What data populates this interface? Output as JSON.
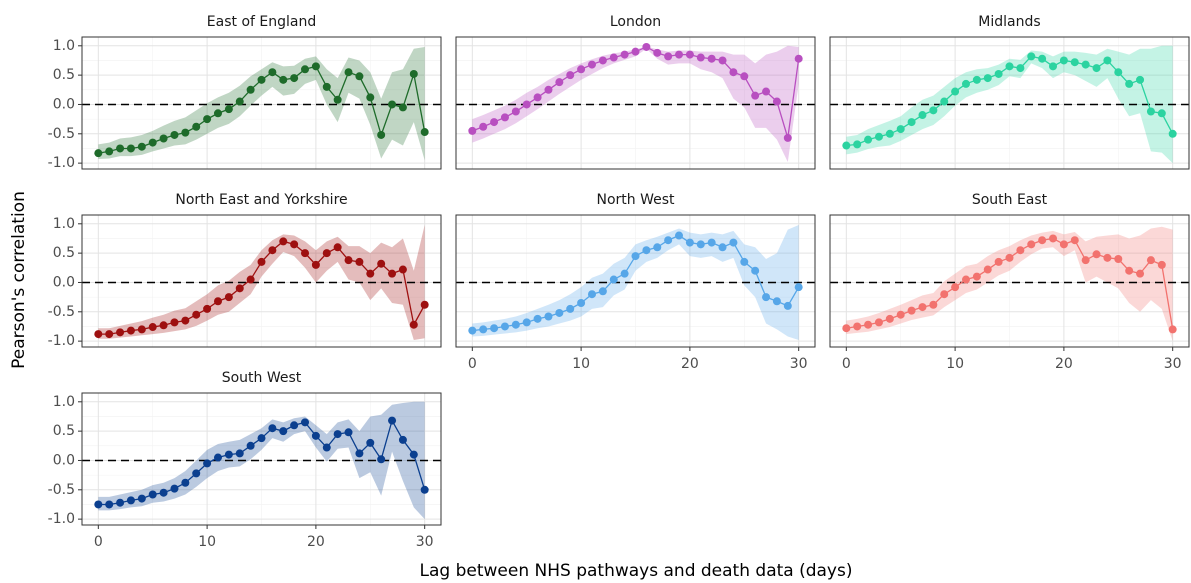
{
  "axis_labels": {
    "x": "Lag between NHS pathways and death data (days)",
    "y": "Pearson's correlation"
  },
  "chart_data": [
    {
      "type": "line",
      "title": "East of England",
      "color": "#1e6b2a",
      "x": [
        0,
        1,
        2,
        3,
        4,
        5,
        6,
        7,
        8,
        9,
        10,
        11,
        12,
        13,
        14,
        15,
        16,
        17,
        18,
        19,
        20,
        21,
        22,
        23,
        24,
        25,
        26,
        27,
        28,
        29,
        30
      ],
      "values": [
        -0.83,
        -0.8,
        -0.75,
        -0.75,
        -0.72,
        -0.65,
        -0.58,
        -0.52,
        -0.48,
        -0.38,
        -0.25,
        -0.15,
        -0.08,
        0.05,
        0.25,
        0.42,
        0.55,
        0.42,
        0.45,
        0.6,
        0.65,
        0.3,
        0.08,
        0.55,
        0.48,
        0.12,
        -0.52,
        0.0,
        -0.05,
        0.52,
        -0.47
      ],
      "upper": [
        -0.68,
        -0.65,
        -0.58,
        -0.56,
        -0.52,
        -0.45,
        -0.36,
        -0.28,
        -0.22,
        -0.1,
        0.02,
        0.12,
        0.2,
        0.32,
        0.48,
        0.6,
        0.72,
        0.65,
        0.66,
        0.78,
        0.82,
        0.6,
        0.45,
        0.8,
        0.75,
        0.55,
        0.1,
        0.55,
        0.6,
        0.95,
        0.98
      ],
      "lower": [
        -0.93,
        -0.92,
        -0.88,
        -0.88,
        -0.86,
        -0.8,
        -0.75,
        -0.7,
        -0.68,
        -0.6,
        -0.5,
        -0.4,
        -0.33,
        -0.2,
        -0.02,
        0.15,
        0.3,
        0.15,
        0.18,
        0.35,
        0.42,
        0.0,
        -0.3,
        0.2,
        0.1,
        -0.35,
        -0.92,
        -0.6,
        -0.7,
        -0.3,
        -0.95
      ],
      "xlim": [
        -1.5,
        31.5
      ],
      "ylim": [
        -1.1,
        1.15
      ],
      "xticks": [
        0,
        10,
        20,
        30
      ],
      "yticks": [
        {
          "value": 1,
          "label": "1.0"
        },
        0.5,
        {
          "value": 0,
          "label": "0.0"
        },
        -0.5,
        {
          "value": -1,
          "label": "-1.0"
        }
      ],
      "grid": true,
      "hline": 0,
      "show_x_tick_labels": false,
      "show_y_tick_labels": true
    },
    {
      "type": "line",
      "title": "London",
      "color": "#b84fc0",
      "x": [
        0,
        1,
        2,
        3,
        4,
        5,
        6,
        7,
        8,
        9,
        10,
        11,
        12,
        13,
        14,
        15,
        16,
        17,
        18,
        19,
        20,
        21,
        22,
        23,
        24,
        25,
        26,
        27,
        28,
        29,
        30
      ],
      "values": [
        -0.45,
        -0.38,
        -0.3,
        -0.22,
        -0.12,
        0.0,
        0.12,
        0.25,
        0.38,
        0.5,
        0.6,
        0.68,
        0.75,
        0.8,
        0.85,
        0.9,
        0.98,
        0.88,
        0.82,
        0.85,
        0.85,
        0.8,
        0.78,
        0.75,
        0.55,
        0.48,
        0.15,
        0.22,
        0.05,
        -0.57,
        0.78
      ],
      "upper": [
        -0.25,
        -0.18,
        -0.1,
        -0.02,
        0.08,
        0.2,
        0.3,
        0.42,
        0.52,
        0.62,
        0.7,
        0.77,
        0.83,
        0.87,
        0.9,
        0.94,
        0.99,
        0.94,
        0.9,
        0.92,
        0.92,
        0.9,
        0.9,
        0.9,
        0.85,
        0.85,
        0.7,
        0.85,
        0.9,
        1.0,
        0.98
      ],
      "lower": [
        -0.65,
        -0.58,
        -0.5,
        -0.42,
        -0.32,
        -0.2,
        -0.08,
        0.05,
        0.18,
        0.3,
        0.42,
        0.52,
        0.62,
        0.7,
        0.76,
        0.82,
        0.95,
        0.78,
        0.68,
        0.7,
        0.7,
        0.6,
        0.55,
        0.45,
        0.1,
        -0.05,
        -0.4,
        -0.4,
        -0.6,
        -0.98,
        0.35
      ],
      "xlim": [
        -1.5,
        31.5
      ],
      "ylim": [
        -1.1,
        1.15
      ],
      "xticks": [
        0,
        10,
        20,
        30
      ],
      "yticks": [
        {
          "value": 1,
          "label": "1.0"
        },
        0.5,
        {
          "value": 0,
          "label": "0.0"
        },
        -0.5,
        {
          "value": -1,
          "label": "-1.0"
        }
      ],
      "grid": true,
      "hline": 0,
      "show_x_tick_labels": false,
      "show_y_tick_labels": false
    },
    {
      "type": "line",
      "title": "Midlands",
      "color": "#2bd3a0",
      "x": [
        0,
        1,
        2,
        3,
        4,
        5,
        6,
        7,
        8,
        9,
        10,
        11,
        12,
        13,
        14,
        15,
        16,
        17,
        18,
        19,
        20,
        21,
        22,
        23,
        24,
        25,
        26,
        27,
        28,
        29,
        30
      ],
      "values": [
        -0.7,
        -0.68,
        -0.6,
        -0.55,
        -0.5,
        -0.42,
        -0.3,
        -0.18,
        -0.1,
        0.05,
        0.22,
        0.35,
        0.42,
        0.45,
        0.52,
        0.65,
        0.62,
        0.82,
        0.78,
        0.65,
        0.75,
        0.72,
        0.68,
        0.62,
        0.75,
        0.55,
        0.35,
        0.42,
        -0.12,
        -0.15,
        -0.5
      ],
      "upper": [
        -0.55,
        -0.52,
        -0.42,
        -0.35,
        -0.28,
        -0.2,
        -0.05,
        0.08,
        0.15,
        0.3,
        0.45,
        0.55,
        0.6,
        0.62,
        0.68,
        0.78,
        0.76,
        0.92,
        0.9,
        0.82,
        0.9,
        0.9,
        0.88,
        0.85,
        0.95,
        0.9,
        0.85,
        0.95,
        0.95,
        1.0,
        1.0
      ],
      "lower": [
        -0.85,
        -0.82,
        -0.76,
        -0.72,
        -0.7,
        -0.62,
        -0.52,
        -0.42,
        -0.35,
        -0.2,
        -0.02,
        0.12,
        0.2,
        0.25,
        0.33,
        0.48,
        0.45,
        0.7,
        0.62,
        0.45,
        0.55,
        0.5,
        0.4,
        0.3,
        0.45,
        0.1,
        -0.2,
        -0.15,
        -0.8,
        -0.82,
        -1.0
      ],
      "xlim": [
        -1.5,
        31.5
      ],
      "ylim": [
        -1.1,
        1.15
      ],
      "xticks": [
        0,
        10,
        20,
        30
      ],
      "yticks": [
        {
          "value": 1,
          "label": "1.0"
        },
        0.5,
        {
          "value": 0,
          "label": "0.0"
        },
        -0.5,
        {
          "value": -1,
          "label": "-1.0"
        }
      ],
      "grid": true,
      "hline": 0,
      "show_x_tick_labels": false,
      "show_y_tick_labels": false
    },
    {
      "type": "line",
      "title": "North East and Yorkshire",
      "color": "#9e1010",
      "x": [
        0,
        1,
        2,
        3,
        4,
        5,
        6,
        7,
        8,
        9,
        10,
        11,
        12,
        13,
        14,
        15,
        16,
        17,
        18,
        19,
        20,
        21,
        22,
        23,
        24,
        25,
        26,
        27,
        28,
        29,
        30
      ],
      "values": [
        -0.88,
        -0.88,
        -0.85,
        -0.82,
        -0.8,
        -0.76,
        -0.73,
        -0.68,
        -0.65,
        -0.55,
        -0.45,
        -0.32,
        -0.25,
        -0.1,
        0.05,
        0.35,
        0.55,
        0.7,
        0.65,
        0.5,
        0.3,
        0.5,
        0.6,
        0.38,
        0.35,
        0.15,
        0.32,
        0.15,
        0.22,
        -0.72,
        -0.38
      ],
      "upper": [
        -0.78,
        -0.78,
        -0.74,
        -0.7,
        -0.66,
        -0.6,
        -0.55,
        -0.48,
        -0.44,
        -0.32,
        -0.2,
        -0.05,
        0.03,
        0.18,
        0.3,
        0.55,
        0.72,
        0.82,
        0.8,
        0.7,
        0.55,
        0.7,
        0.78,
        0.62,
        0.62,
        0.5,
        0.68,
        0.6,
        0.75,
        0.2,
        0.98
      ],
      "lower": [
        -0.96,
        -0.96,
        -0.94,
        -0.92,
        -0.9,
        -0.88,
        -0.86,
        -0.83,
        -0.8,
        -0.74,
        -0.65,
        -0.55,
        -0.5,
        -0.35,
        -0.2,
        0.1,
        0.32,
        0.52,
        0.45,
        0.25,
        0.0,
        0.2,
        0.35,
        0.05,
        0.0,
        -0.3,
        -0.1,
        -0.35,
        -0.38,
        -0.98,
        -0.95
      ],
      "xlim": [
        -1.5,
        31.5
      ],
      "ylim": [
        -1.1,
        1.15
      ],
      "xticks": [
        0,
        10,
        20,
        30
      ],
      "yticks": [
        {
          "value": 1,
          "label": "1.0"
        },
        0.5,
        {
          "value": 0,
          "label": "0.0"
        },
        -0.5,
        {
          "value": -1,
          "label": "-1.0"
        }
      ],
      "grid": true,
      "hline": 0,
      "show_x_tick_labels": false,
      "show_y_tick_labels": true
    },
    {
      "type": "line",
      "title": "North West",
      "color": "#56a6e8",
      "x": [
        0,
        1,
        2,
        3,
        4,
        5,
        6,
        7,
        8,
        9,
        10,
        11,
        12,
        13,
        14,
        15,
        16,
        17,
        18,
        19,
        20,
        21,
        22,
        23,
        24,
        25,
        26,
        27,
        28,
        29,
        30
      ],
      "values": [
        -0.82,
        -0.8,
        -0.78,
        -0.75,
        -0.72,
        -0.68,
        -0.62,
        -0.58,
        -0.52,
        -0.45,
        -0.35,
        -0.2,
        -0.15,
        0.05,
        0.15,
        0.45,
        0.55,
        0.6,
        0.72,
        0.8,
        0.68,
        0.65,
        0.68,
        0.6,
        0.68,
        0.35,
        0.2,
        -0.25,
        -0.32,
        -0.4,
        -0.08
      ],
      "upper": [
        -0.7,
        -0.68,
        -0.65,
        -0.62,
        -0.58,
        -0.52,
        -0.45,
        -0.38,
        -0.3,
        -0.2,
        -0.08,
        0.08,
        0.15,
        0.32,
        0.42,
        0.65,
        0.72,
        0.78,
        0.85,
        0.92,
        0.85,
        0.82,
        0.85,
        0.82,
        0.88,
        0.65,
        0.6,
        0.4,
        0.5,
        0.9,
        0.98
      ],
      "lower": [
        -0.92,
        -0.91,
        -0.89,
        -0.87,
        -0.85,
        -0.82,
        -0.78,
        -0.75,
        -0.7,
        -0.65,
        -0.58,
        -0.45,
        -0.42,
        -0.22,
        -0.12,
        0.2,
        0.35,
        0.42,
        0.55,
        0.65,
        0.45,
        0.42,
        0.45,
        0.35,
        0.42,
        -0.05,
        -0.25,
        -0.7,
        -0.8,
        -0.92,
        -0.98
      ],
      "xlim": [
        -1.5,
        31.5
      ],
      "ylim": [
        -1.1,
        1.15
      ],
      "xticks": [
        0,
        10,
        20,
        30
      ],
      "yticks": [
        {
          "value": 1,
          "label": "1.0"
        },
        0.5,
        {
          "value": 0,
          "label": "0.0"
        },
        -0.5,
        {
          "value": -1,
          "label": "-1.0"
        }
      ],
      "grid": true,
      "hline": 0,
      "show_x_tick_labels": true,
      "show_y_tick_labels": false
    },
    {
      "type": "line",
      "title": "South East",
      "color": "#f2726e",
      "x": [
        0,
        1,
        2,
        3,
        4,
        5,
        6,
        7,
        8,
        9,
        10,
        11,
        12,
        13,
        14,
        15,
        16,
        17,
        18,
        19,
        20,
        21,
        22,
        23,
        24,
        25,
        26,
        27,
        28,
        29,
        30
      ],
      "values": [
        -0.78,
        -0.75,
        -0.72,
        -0.68,
        -0.62,
        -0.55,
        -0.48,
        -0.42,
        -0.38,
        -0.2,
        -0.08,
        0.05,
        0.1,
        0.22,
        0.35,
        0.42,
        0.55,
        0.65,
        0.72,
        0.75,
        0.65,
        0.72,
        0.38,
        0.48,
        0.42,
        0.4,
        0.2,
        0.15,
        0.38,
        0.3,
        -0.8
      ],
      "upper": [
        -0.65,
        -0.62,
        -0.58,
        -0.52,
        -0.45,
        -0.38,
        -0.3,
        -0.22,
        -0.18,
        0.02,
        0.15,
        0.28,
        0.32,
        0.45,
        0.55,
        0.62,
        0.72,
        0.8,
        0.85,
        0.88,
        0.82,
        0.86,
        0.7,
        0.78,
        0.8,
        0.82,
        0.75,
        0.8,
        0.92,
        0.95,
        0.9
      ],
      "lower": [
        -0.88,
        -0.86,
        -0.84,
        -0.8,
        -0.76,
        -0.7,
        -0.64,
        -0.6,
        -0.56,
        -0.42,
        -0.3,
        -0.18,
        -0.12,
        0.0,
        0.12,
        0.2,
        0.35,
        0.48,
        0.58,
        0.6,
        0.45,
        0.55,
        0.0,
        0.1,
        0.0,
        -0.1,
        -0.35,
        -0.5,
        -0.3,
        -0.45,
        -1.0
      ],
      "xlim": [
        -1.5,
        31.5
      ],
      "ylim": [
        -1.1,
        1.15
      ],
      "xticks": [
        0,
        10,
        20,
        30
      ],
      "yticks": [
        {
          "value": 1,
          "label": "1.0"
        },
        0.5,
        {
          "value": 0,
          "label": "0.0"
        },
        -0.5,
        {
          "value": -1,
          "label": "-1.0"
        }
      ],
      "grid": true,
      "hline": 0,
      "show_x_tick_labels": true,
      "show_y_tick_labels": false
    },
    {
      "type": "line",
      "title": "South West",
      "color": "#0b3f8f",
      "x": [
        0,
        1,
        2,
        3,
        4,
        5,
        6,
        7,
        8,
        9,
        10,
        11,
        12,
        13,
        14,
        15,
        16,
        17,
        18,
        19,
        20,
        21,
        22,
        23,
        24,
        25,
        26,
        27,
        28,
        29,
        30
      ],
      "values": [
        -0.75,
        -0.75,
        -0.72,
        -0.68,
        -0.65,
        -0.58,
        -0.55,
        -0.48,
        -0.38,
        -0.22,
        -0.05,
        0.05,
        0.1,
        0.12,
        0.25,
        0.38,
        0.55,
        0.5,
        0.6,
        0.65,
        0.42,
        0.22,
        0.45,
        0.48,
        0.12,
        0.3,
        0.02,
        0.68,
        0.35,
        0.1,
        -0.5
      ],
      "upper": [
        -0.62,
        -0.62,
        -0.58,
        -0.54,
        -0.5,
        -0.42,
        -0.38,
        -0.3,
        -0.18,
        0.0,
        0.18,
        0.28,
        0.32,
        0.35,
        0.45,
        0.55,
        0.7,
        0.65,
        0.72,
        0.75,
        0.6,
        0.45,
        0.65,
        0.7,
        0.5,
        0.75,
        0.78,
        0.95,
        0.98,
        1.0,
        1.0
      ],
      "lower": [
        -0.85,
        -0.85,
        -0.83,
        -0.8,
        -0.78,
        -0.72,
        -0.7,
        -0.65,
        -0.58,
        -0.45,
        -0.3,
        -0.18,
        -0.12,
        -0.1,
        0.02,
        0.18,
        0.38,
        0.32,
        0.45,
        0.5,
        0.22,
        -0.02,
        0.2,
        0.22,
        -0.3,
        -0.2,
        -0.6,
        0.15,
        -0.35,
        -0.8,
        -1.0
      ],
      "xlim": [
        -1.5,
        31.5
      ],
      "ylim": [
        -1.1,
        1.15
      ],
      "xticks": [
        0,
        10,
        20,
        30
      ],
      "yticks": [
        {
          "value": 1,
          "label": "1.0"
        },
        0.5,
        {
          "value": 0,
          "label": "0.0"
        },
        -0.5,
        {
          "value": -1,
          "label": "-1.0"
        }
      ],
      "grid": true,
      "hline": 0,
      "show_x_tick_labels": true,
      "show_y_tick_labels": true
    }
  ]
}
